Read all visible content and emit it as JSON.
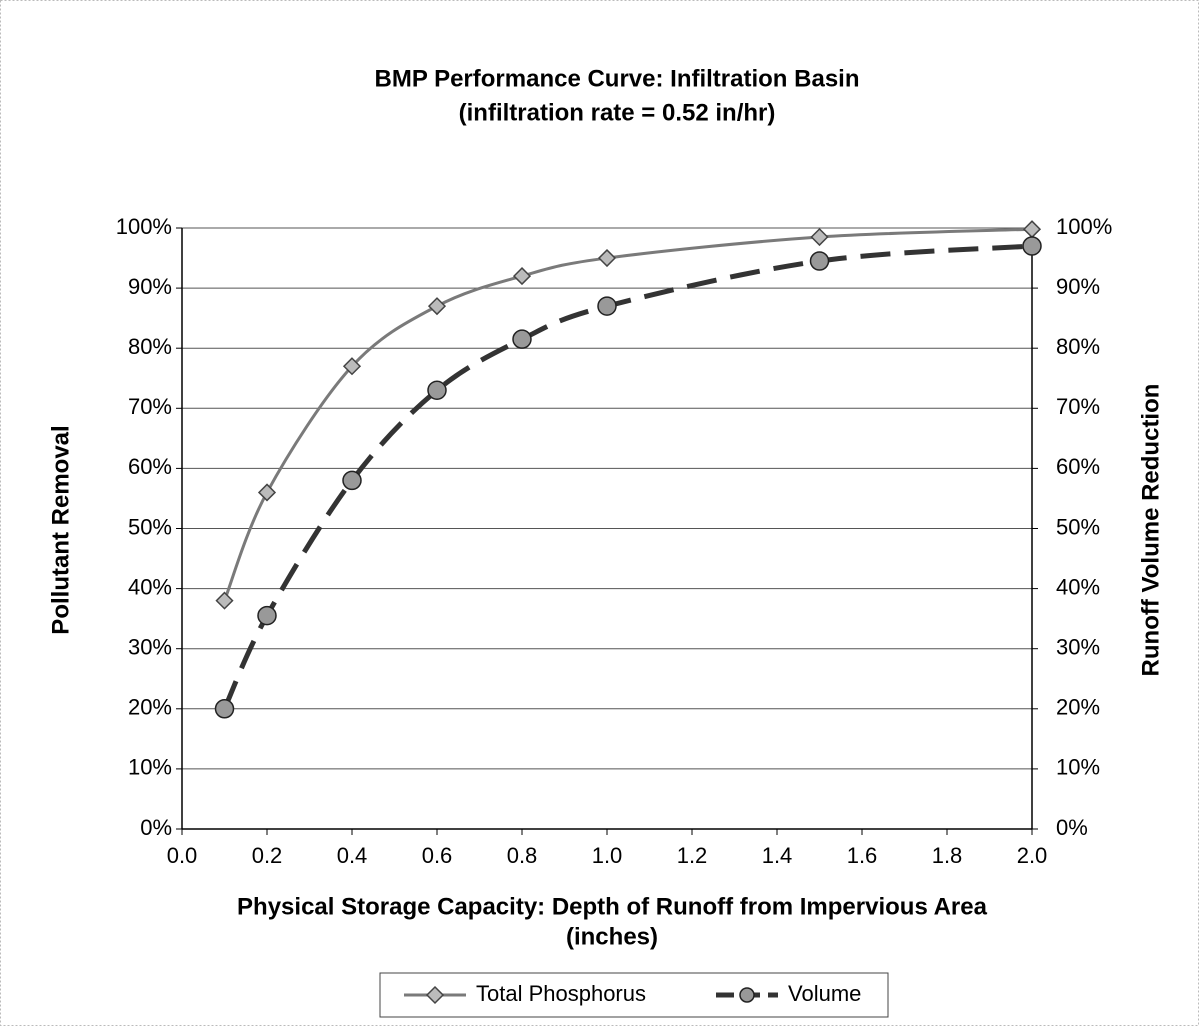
{
  "chart_data": {
    "type": "line",
    "title": "BMP Performance Curve: Infiltration Basin",
    "subtitle": "(infiltration rate = 0.52 in/hr)",
    "x_label": "Physical Storage Capacity: Depth of Runoff from Impervious Area",
    "x_label_line2": "(inches)",
    "y_label": "Pollutant Removal",
    "y2_label": "Runoff Volume Reduction",
    "x": [
      0.1,
      0.2,
      0.4,
      0.6,
      0.8,
      1.0,
      1.5,
      2.0
    ],
    "series": [
      {
        "name": "Total Phosphorus",
        "color": "#7a7a7a",
        "marker": "diamond",
        "values": [
          38,
          56,
          77,
          87,
          92,
          95,
          98.5,
          99.8
        ]
      },
      {
        "name": "Volume",
        "color": "#333333",
        "marker": "circle",
        "axis": "y2",
        "values": [
          20,
          35.5,
          58,
          73,
          81.5,
          87,
          94.5,
          97
        ]
      }
    ],
    "xlim": [
      0,
      2
    ],
    "xticks": [
      {
        "value": 0,
        "label": "0.0"
      },
      {
        "value": 0.2,
        "label": "0.2"
      },
      {
        "value": 0.4,
        "label": "0.4"
      },
      {
        "value": 0.6,
        "label": "0.6"
      },
      {
        "value": 0.8,
        "label": "0.8"
      },
      {
        "value": 1,
        "label": "1.0"
      },
      {
        "value": 1.2,
        "label": "1.2"
      },
      {
        "value": 1.4,
        "label": "1.4"
      },
      {
        "value": 1.6,
        "label": "1.6"
      },
      {
        "value": 1.8,
        "label": "1.8"
      },
      {
        "value": 2,
        "label": "2.0"
      }
    ],
    "ylim": [
      0,
      100
    ],
    "yticks": [
      {
        "value": 0,
        "label": "0%"
      },
      {
        "value": 10,
        "label": "10%"
      },
      {
        "value": 20,
        "label": "20%"
      },
      {
        "value": 30,
        "label": "30%"
      },
      {
        "value": 40,
        "label": "40%"
      },
      {
        "value": 50,
        "label": "50%"
      },
      {
        "value": 60,
        "label": "60%"
      },
      {
        "value": 70,
        "label": "70%"
      },
      {
        "value": 80,
        "label": "80%"
      },
      {
        "value": 90,
        "label": "90%"
      },
      {
        "value": 100,
        "label": "100%"
      }
    ],
    "y2lim": [
      0,
      100
    ],
    "y2ticks": [
      {
        "value": 0,
        "label": "0%"
      },
      {
        "value": 10,
        "label": "10%"
      },
      {
        "value": 20,
        "label": "20%"
      },
      {
        "value": 30,
        "label": "30%"
      },
      {
        "value": 40,
        "label": "40%"
      },
      {
        "value": 50,
        "label": "50%"
      },
      {
        "value": 60,
        "label": "60%"
      },
      {
        "value": 70,
        "label": "70%"
      },
      {
        "value": 80,
        "label": "80%"
      },
      {
        "value": 90,
        "label": "90%"
      },
      {
        "value": 100,
        "label": "100%"
      }
    ],
    "grid": true,
    "legend": "bottom"
  }
}
